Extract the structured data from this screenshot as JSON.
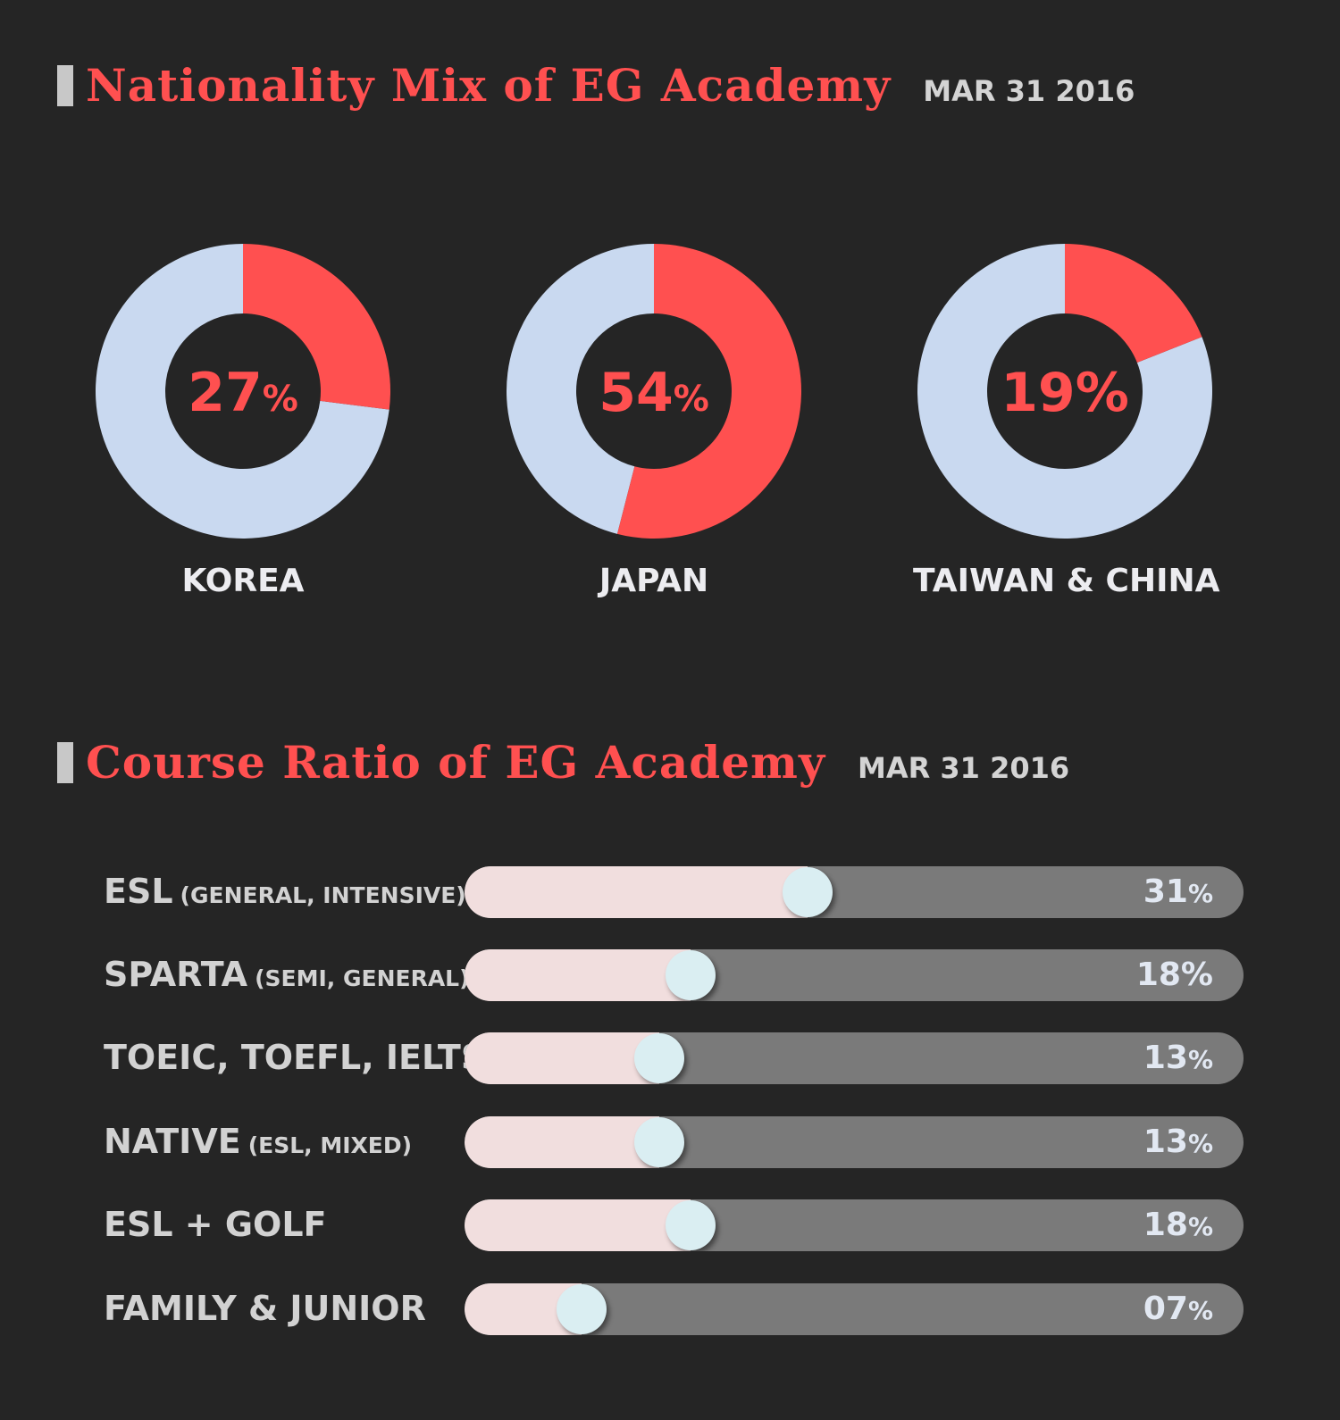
{
  "nationality": {
    "title": "Nationality Mix of EG Academy",
    "date": "MAR 31 2016"
  },
  "course": {
    "title": "Course Ratio of EG Academy",
    "date": "MAR 31 2016"
  },
  "colors": {
    "accent": "#ff5050",
    "donut_rest": "#c9d9f0",
    "background": "#252525",
    "bar_fill": "#f1dede",
    "bar_track": "#7a7a7a",
    "knob": "#daeef2"
  },
  "chart_data": [
    {
      "type": "pie",
      "title": "Nationality Mix of EG Academy",
      "categories": [
        "KOREA",
        "JAPAN",
        "TAIWAN & CHINA"
      ],
      "values": [
        27,
        54,
        19
      ],
      "labels": [
        {
          "num": "27",
          "sign": "%"
        },
        {
          "num": "54",
          "sign": "%"
        },
        {
          "num": "19",
          "sign": "%"
        }
      ]
    },
    {
      "type": "bar",
      "title": "Course Ratio of EG Academy",
      "orientation": "horizontal",
      "categories": [
        {
          "main": "ESL",
          "sub": "(GENERAL, INTENSIVE)"
        },
        {
          "main": "SPARTA",
          "sub": "(SEMI, GENERAL)"
        },
        {
          "main": "TOEIC, TOEFL, IELTS",
          "sub": ""
        },
        {
          "main": "NATIVE",
          "sub": "(ESL, MIXED)"
        },
        {
          "main": "ESL + GOLF",
          "sub": ""
        },
        {
          "main": "FAMILY & JUNIOR",
          "sub": ""
        }
      ],
      "values": [
        31,
        18,
        13,
        13,
        18,
        7
      ],
      "labels": [
        {
          "num": "31",
          "sign": "%"
        },
        {
          "num": "18",
          "sign": "%"
        },
        {
          "num": "13",
          "sign": "%"
        },
        {
          "num": "13",
          "sign": "%"
        },
        {
          "num": "18",
          "sign": "%"
        },
        {
          "num": "07",
          "sign": "%"
        }
      ],
      "fill_fraction": [
        0.44,
        0.29,
        0.25,
        0.25,
        0.29,
        0.15
      ]
    }
  ]
}
